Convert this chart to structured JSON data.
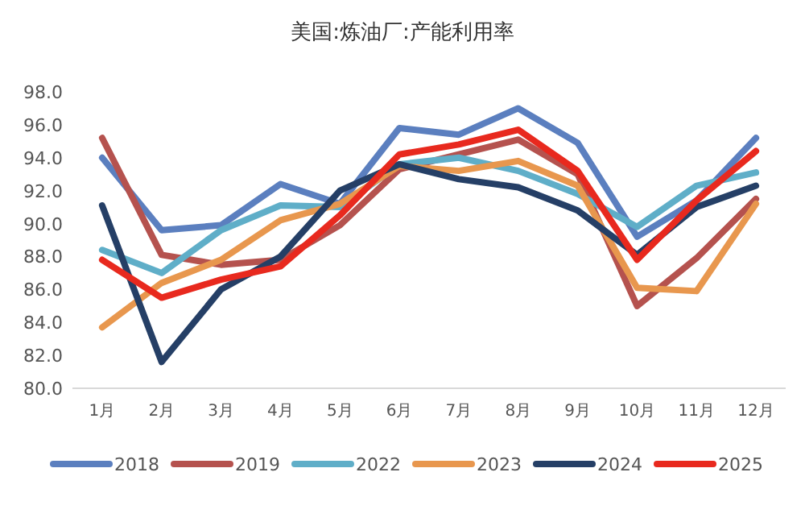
{
  "chart_data": {
    "type": "line",
    "title": "美国:炼油厂:产能利用率",
    "categories": [
      "1月",
      "2月",
      "3月",
      "4月",
      "5月",
      "6月",
      "7月",
      "8月",
      "9月",
      "10月",
      "11月",
      "12月"
    ],
    "series": [
      {
        "name": "2018",
        "color": "#5b7fbf",
        "values": [
          94.0,
          89.6,
          89.9,
          92.4,
          91.2,
          95.8,
          95.4,
          97.0,
          94.9,
          89.2,
          91.4,
          95.2
        ]
      },
      {
        "name": "2019",
        "color": "#b5524e",
        "values": [
          95.2,
          88.1,
          87.5,
          87.8,
          89.9,
          93.3,
          94.2,
          95.1,
          93.0,
          85.0,
          87.9,
          91.5
        ]
      },
      {
        "name": "2022",
        "color": "#5faec8",
        "values": [
          88.4,
          87.0,
          89.6,
          91.1,
          91.0,
          93.6,
          94.0,
          93.2,
          91.8,
          89.8,
          92.3,
          93.1
        ]
      },
      {
        "name": "2023",
        "color": "#e8974e",
        "values": [
          83.7,
          86.4,
          87.8,
          90.2,
          91.2,
          93.5,
          93.2,
          93.8,
          92.3,
          86.1,
          85.9,
          91.2
        ]
      },
      {
        "name": "2024",
        "color": "#253f66",
        "values": [
          91.1,
          81.6,
          86.0,
          88.0,
          92.0,
          93.6,
          92.7,
          92.2,
          90.8,
          88.1,
          91.0,
          92.3
        ]
      },
      {
        "name": "2025",
        "color": "#e8291e",
        "values": [
          87.8,
          85.5,
          86.6,
          87.4,
          90.5,
          94.2,
          94.8,
          95.7,
          93.2,
          87.8,
          91.4,
          94.4
        ]
      }
    ],
    "ylim": [
      80,
      98
    ],
    "yticks": [
      {
        "value": 80,
        "label": "80.0"
      },
      {
        "value": 82,
        "label": "82.0"
      },
      {
        "value": 84,
        "label": "84.0"
      },
      {
        "value": 86,
        "label": "86.0"
      },
      {
        "value": 88,
        "label": "88.0"
      },
      {
        "value": 90,
        "label": "90.0"
      },
      {
        "value": 92,
        "label": "92.0"
      },
      {
        "value": 94,
        "label": "94.0"
      },
      {
        "value": 96,
        "label": "96.0"
      },
      {
        "value": 98,
        "label": "98.0"
      }
    ],
    "grid": false,
    "legend": "bottom",
    "marker": "none",
    "line_style": "solid"
  }
}
